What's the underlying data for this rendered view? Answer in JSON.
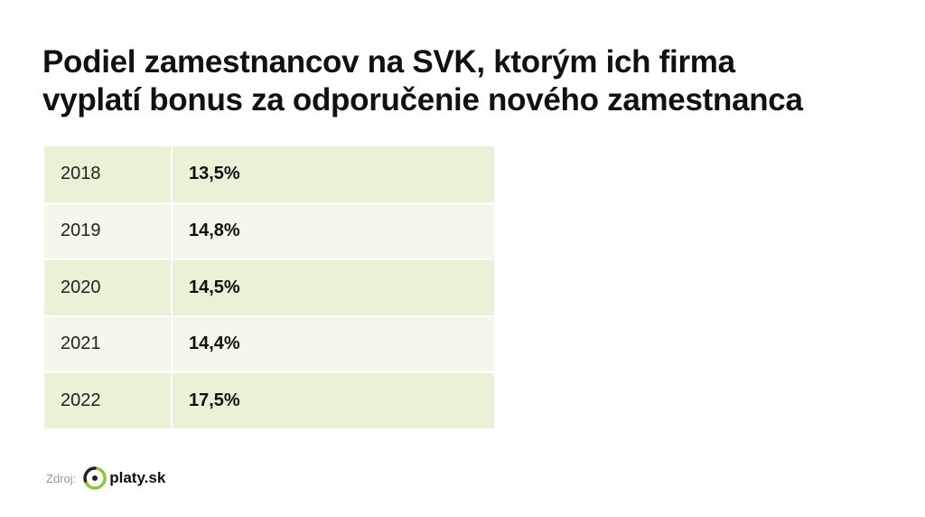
{
  "title": [
    "Podiel zamestnancov na SVK, ktorým ich firma",
    "vyplatí bonus za odporučenie nového zamestnanca"
  ],
  "table": {
    "rows": [
      [
        "2018",
        "13,5%"
      ],
      [
        "2019",
        "14,8%"
      ],
      [
        "2020",
        "14,5%"
      ],
      [
        "2021",
        "14,4%"
      ],
      [
        "2022",
        "17,5%"
      ]
    ]
  },
  "source": {
    "label": "Zdroj:",
    "logo": "platy.sk"
  }
}
